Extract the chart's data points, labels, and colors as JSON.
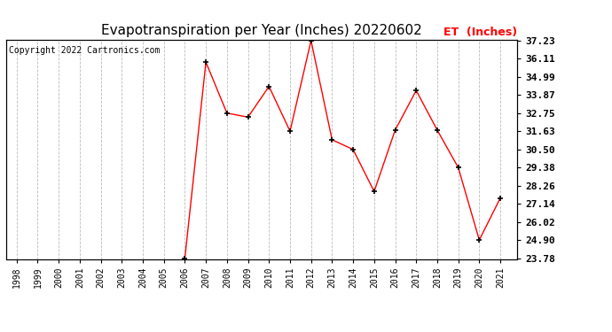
{
  "title": "Evapotranspiration per Year (Inches) 20220602",
  "copyright": "Copyright 2022 Cartronics.com",
  "legend_label": "ET  (Inches)",
  "all_years": [
    1998,
    1999,
    2000,
    2001,
    2002,
    2003,
    2004,
    2005,
    2006,
    2007,
    2008,
    2009,
    2010,
    2011,
    2012,
    2013,
    2014,
    2015,
    2016,
    2017,
    2018,
    2019,
    2020,
    2021
  ],
  "data_years": [
    2006,
    2007,
    2008,
    2009,
    2010,
    2011,
    2012,
    2013,
    2014,
    2015,
    2016,
    2017,
    2018,
    2019,
    2020,
    2021
  ],
  "data_values": [
    23.78,
    35.9,
    32.75,
    32.5,
    34.4,
    31.63,
    37.23,
    31.1,
    30.5,
    27.9,
    31.7,
    34.15,
    31.7,
    29.38,
    24.9,
    27.5
  ],
  "yticks": [
    23.78,
    24.9,
    26.02,
    27.14,
    28.26,
    29.38,
    30.5,
    31.63,
    32.75,
    33.87,
    34.99,
    36.11,
    37.23
  ],
  "ymin": 23.78,
  "ymax": 37.23,
  "line_color": "red",
  "marker_color": "black",
  "grid_color": "#aaaaaa",
  "background_color": "#ffffff",
  "title_fontsize": 11,
  "copyright_fontsize": 7,
  "legend_fontsize": 9,
  "legend_color": "red",
  "xtick_fontsize": 7,
  "ytick_fontsize": 8
}
